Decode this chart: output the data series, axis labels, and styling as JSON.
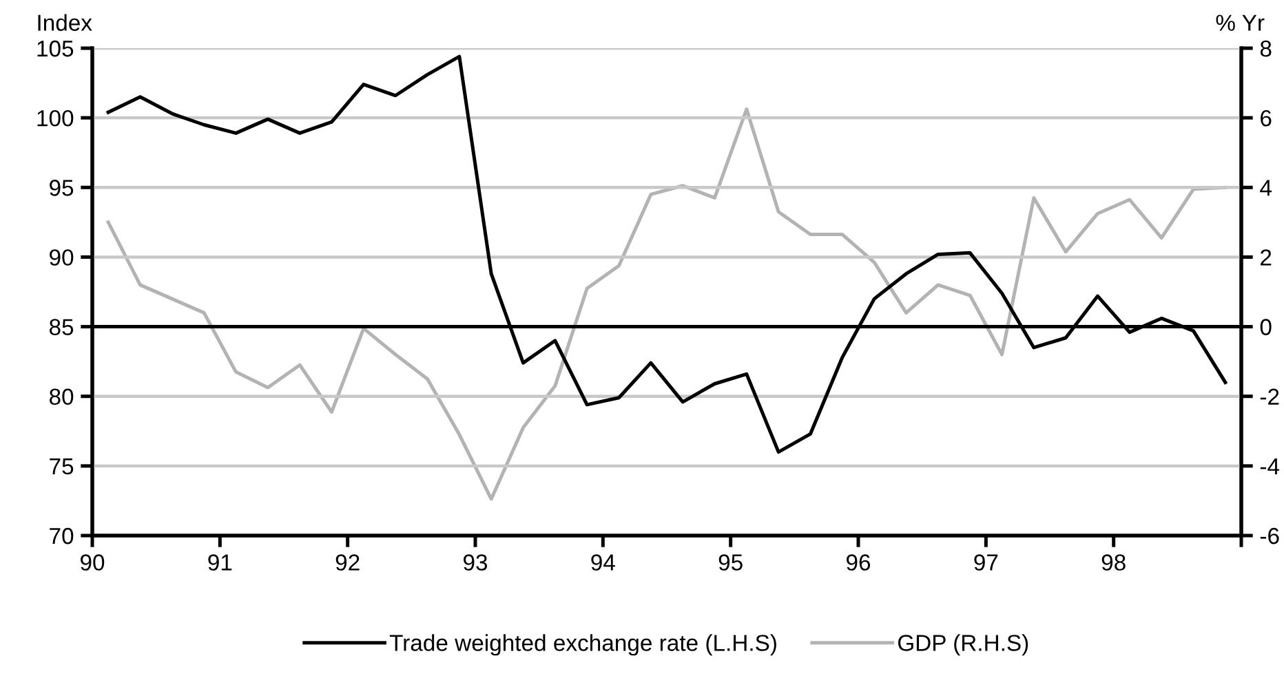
{
  "chart_data": {
    "type": "line",
    "ylabel": "Index",
    "y2label": "% Yr",
    "x": [
      90.125,
      90.375,
      90.625,
      90.875,
      91.125,
      91.375,
      91.625,
      91.875,
      92.125,
      92.375,
      92.625,
      92.875,
      93.125,
      93.375,
      93.625,
      93.875,
      94.125,
      94.375,
      94.625,
      94.875,
      95.125,
      95.375,
      95.625,
      95.875,
      96.125,
      96.375,
      96.625,
      96.875,
      97.125,
      97.375,
      97.625,
      97.875,
      98.125,
      98.375,
      98.625,
      98.875
    ],
    "series": [
      {
        "name": "Trade weighted exchange rate (L.H.S)",
        "color": "#000000",
        "values": [
          100.4,
          101.5,
          100.3,
          99.5,
          98.9,
          99.9,
          98.9,
          99.7,
          102.4,
          101.6,
          103.1,
          104.4,
          88.8,
          82.4,
          84.0,
          79.4,
          79.9,
          82.4,
          79.6,
          80.9,
          81.6,
          76.0,
          77.3,
          82.8,
          87.0,
          88.8,
          90.2,
          90.3,
          87.4,
          83.5,
          84.2,
          87.2,
          84.6,
          85.6,
          84.7,
          81.0
        ]
      },
      {
        "name": "GDP (R.H.S)",
        "color": "#b3b3b3",
        "axis": "y2",
        "values": [
          3.0,
          1.2,
          0.8,
          0.4,
          -1.3,
          -1.75,
          -1.1,
          -2.45,
          -0.05,
          -0.8,
          -1.5,
          -3.1,
          -4.95,
          -2.9,
          -1.7,
          1.1,
          1.75,
          3.8,
          4.05,
          3.7,
          6.25,
          3.3,
          2.65,
          2.65,
          1.85,
          0.4,
          1.2,
          0.9,
          -0.8,
          3.7,
          2.15,
          3.25,
          3.65,
          2.55,
          3.95,
          4.0
        ]
      }
    ],
    "xlim": [
      90,
      99
    ],
    "xticks": [
      {
        "value": 90,
        "label": "90"
      },
      {
        "value": 91,
        "label": "91"
      },
      {
        "value": 92,
        "label": "92"
      },
      {
        "value": 93,
        "label": "93"
      },
      {
        "value": 94,
        "label": "94"
      },
      {
        "value": 95,
        "label": "95"
      },
      {
        "value": 96,
        "label": "96"
      },
      {
        "value": 97,
        "label": "97"
      },
      {
        "value": 98,
        "label": "98"
      },
      {
        "value": 99,
        "label": null
      }
    ],
    "ylim": [
      70,
      105
    ],
    "yticks": [
      70,
      75,
      80,
      85,
      90,
      95,
      100,
      105
    ],
    "y2lim": [
      -6,
      8
    ],
    "y2ticks": [
      -6,
      -4,
      -2,
      0,
      2,
      4,
      6,
      8
    ],
    "ref_lines": [
      {
        "axis": "y",
        "value": 85,
        "color": "#000000"
      }
    ],
    "grid": "y",
    "legend": "bottom",
    "marker": "none",
    "line_style": "solid"
  }
}
